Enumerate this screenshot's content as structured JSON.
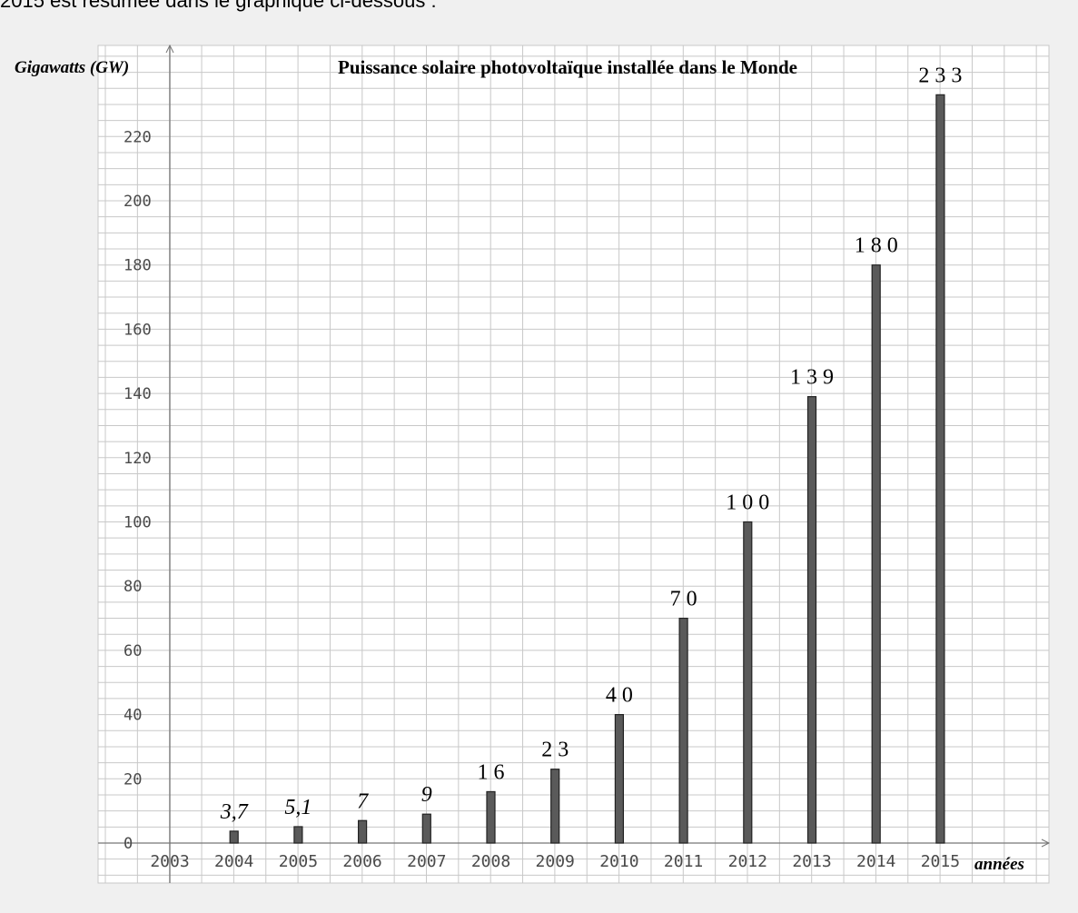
{
  "intro_text": "2015 est résumée dans le graphique ci-dessous :",
  "chart_data": {
    "type": "bar",
    "title": "Puissance solaire photovoltaïque installée dans le Monde",
    "ylabel": "Gigawatts (GW)",
    "xlabel": "années",
    "x_ticks": [
      "2003",
      "2004",
      "2005",
      "2006",
      "2007",
      "2008",
      "2009",
      "2010",
      "2011",
      "2012",
      "2013",
      "2014",
      "2015"
    ],
    "categories": [
      "2004",
      "2005",
      "2006",
      "2007",
      "2008",
      "2009",
      "2010",
      "2011",
      "2012",
      "2013",
      "2014",
      "2015"
    ],
    "values": [
      3.7,
      5.1,
      7,
      9,
      16,
      23,
      40,
      70,
      100,
      139,
      180,
      233
    ],
    "value_labels": [
      "3,7",
      "5,1",
      "7",
      "9",
      "16",
      "23",
      "40",
      "70",
      "100",
      "139",
      "180",
      "233"
    ],
    "y_ticks": [
      0,
      20,
      40,
      60,
      80,
      100,
      120,
      140,
      160,
      180,
      200,
      220
    ],
    "ylim": [
      0,
      240
    ],
    "grid": true,
    "colors": {
      "bar": "#5a5a5a",
      "grid": "#c8c8c8",
      "background": "#ffffff",
      "page": "#f0f0f0"
    }
  }
}
